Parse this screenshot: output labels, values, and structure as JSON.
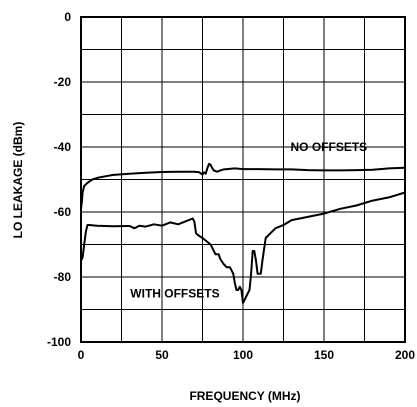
{
  "chart_data": {
    "type": "line",
    "xlabel": "FREQUENCY (MHz)",
    "ylabel": "LO LEAKAGE (dBm)",
    "xlim": [
      0,
      200
    ],
    "ylim": [
      -100,
      0
    ],
    "grid": true,
    "x_ticks": [
      0,
      50,
      100,
      150,
      200
    ],
    "y_ticks": [
      0,
      -20,
      -40,
      -60,
      -80,
      -100
    ],
    "x_tick_labels": [
      "0",
      "50",
      "100",
      "150",
      "200"
    ],
    "y_tick_labels": [
      "0",
      "-20",
      "-40",
      "-60",
      "-80",
      "-100"
    ],
    "series": [
      {
        "name": "NO OFFSETS",
        "x": [
          0,
          0.5,
          1,
          2,
          4,
          7,
          10,
          15,
          20,
          30,
          40,
          50,
          60,
          70,
          73,
          75,
          76,
          77,
          78,
          79,
          80,
          81,
          82,
          84,
          86,
          88,
          90,
          95,
          100,
          110,
          120,
          130,
          140,
          150,
          160,
          170,
          180,
          190,
          200
        ],
        "y": [
          -59,
          -57,
          -54,
          -52,
          -51,
          -50,
          -49.5,
          -49,
          -48.6,
          -48.2,
          -47.9,
          -47.7,
          -47.6,
          -47.6,
          -47.8,
          -48.5,
          -47.8,
          -48.2,
          -46.5,
          -45.2,
          -45.5,
          -46.5,
          -47.2,
          -47.6,
          -47.2,
          -46.9,
          -46.8,
          -46.6,
          -46.8,
          -46.8,
          -46.9,
          -46.9,
          -47.1,
          -47.2,
          -47.2,
          -47.1,
          -47,
          -46.6,
          -46.4
        ]
      },
      {
        "name": "WITH OFFSETS",
        "x": [
          0,
          1,
          2,
          3,
          4,
          5,
          10,
          20,
          30,
          33,
          36,
          40,
          45,
          50,
          55,
          60,
          65,
          69,
          70,
          71,
          72,
          75,
          80,
          83,
          85,
          86,
          88,
          90,
          92,
          94,
          95,
          96,
          97,
          98,
          99,
          100,
          102,
          104,
          105,
          106,
          107,
          108,
          109,
          110,
          111,
          112,
          114,
          116,
          120,
          125,
          130,
          140,
          150,
          160,
          170,
          180,
          190,
          200
        ],
        "y": [
          -75,
          -74,
          -70,
          -66,
          -64,
          -64,
          -64.2,
          -64.4,
          -64.3,
          -65,
          -64.2,
          -64.5,
          -63.8,
          -64.2,
          -63.2,
          -63.8,
          -62.8,
          -62,
          -63,
          -66.5,
          -67,
          -68,
          -70,
          -73,
          -73,
          -74.5,
          -76,
          -77,
          -77,
          -79,
          -82,
          -84,
          -84,
          -83,
          -84,
          -88,
          -86,
          -84,
          -79,
          -72,
          -72,
          -75,
          -79,
          -79,
          -79,
          -75,
          -68,
          -67,
          -65,
          -64,
          -62.5,
          -61.5,
          -60.5,
          -59,
          -58,
          -56.5,
          -55.5,
          -54
        ]
      }
    ],
    "annotations": [
      {
        "text": "NO OFFSETS",
        "x": 153,
        "y": -40
      },
      {
        "text": "WITH OFFSETS",
        "x": 58,
        "y": -85
      }
    ]
  }
}
